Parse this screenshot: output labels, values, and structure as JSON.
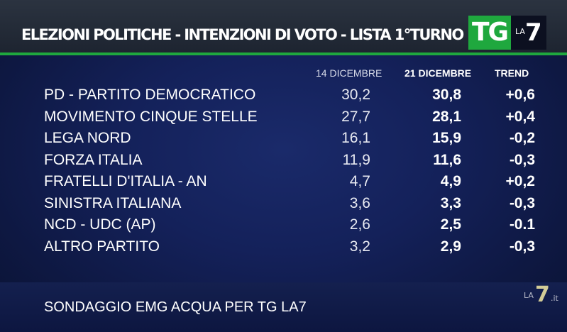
{
  "header": {
    "title": "ELEZIONI POLITICHE - INTENZIONI DI VOTO - LISTA 1°TURNO"
  },
  "logo": {
    "tg": "TG",
    "la": "LA",
    "seven": "7"
  },
  "watermark": {
    "la": "LA",
    "seven": "7",
    "it": ".it"
  },
  "colors": {
    "accent_green": "#1fa83e",
    "background": "#14215a"
  },
  "chart_data": {
    "type": "table",
    "columns": [
      "14 DICEMBRE",
      "21 DICEMBRE",
      "TREND"
    ],
    "rows": [
      {
        "party": "PD - PARTITO DEMOCRATICO",
        "dec14": "30,2",
        "dec21": "30,8",
        "trend": "+0,6"
      },
      {
        "party": "MOVIMENTO CINQUE STELLE",
        "dec14": "27,7",
        "dec21": "28,1",
        "trend": "+0,4"
      },
      {
        "party": "LEGA NORD",
        "dec14": "16,1",
        "dec21": "15,9",
        "trend": "-0,2"
      },
      {
        "party": "FORZA ITALIA",
        "dec14": "11,9",
        "dec21": "11,6",
        "trend": "-0,3"
      },
      {
        "party": "FRATELLI D'ITALIA - AN",
        "dec14": "4,7",
        "dec21": "4,9",
        "trend": "+0,2"
      },
      {
        "party": "SINISTRA ITALIANA",
        "dec14": "3,6",
        "dec21": "3,3",
        "trend": "-0,3"
      },
      {
        "party": "NCD - UDC (AP)",
        "dec14": "2,6",
        "dec21": "2,5",
        "trend": "-0.1"
      },
      {
        "party": "ALTRO PARTITO",
        "dec14": "3,2",
        "dec21": "2,9",
        "trend": "-0,3"
      }
    ]
  },
  "footer": {
    "source": "SONDAGGIO EMG ACQUA PER TG LA7"
  }
}
